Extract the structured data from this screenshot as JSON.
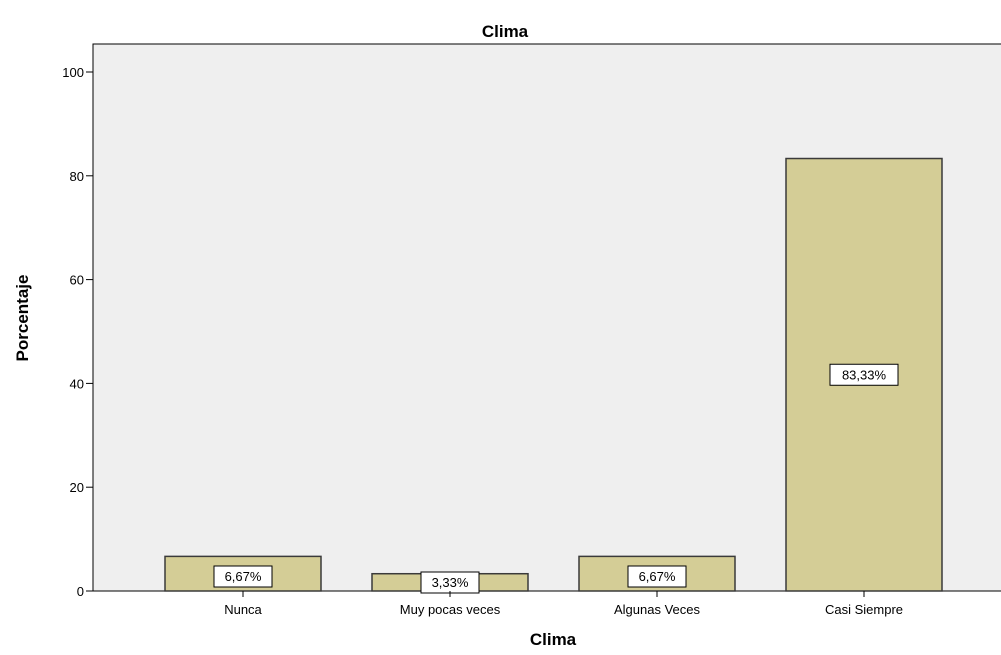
{
  "chart_data": {
    "type": "bar",
    "title": "Clima",
    "xlabel": "Clima",
    "ylabel": "Porcentaje",
    "categories": [
      "Nunca",
      "Muy pocas veces",
      "Algunas Veces",
      "Casi Siempre"
    ],
    "values": [
      6.67,
      3.33,
      6.67,
      83.33
    ],
    "data_labels": [
      "6,67%",
      "3,33%",
      "6,67%",
      "83,33%"
    ],
    "ylim": [
      0,
      100
    ],
    "yticks": [
      0,
      20,
      40,
      60,
      80,
      100
    ],
    "grid": false,
    "legend": "none",
    "colors": {
      "bar_fill": "#d4cd96",
      "bar_stroke": "#3a3a3a",
      "plot_background": "#efefef",
      "label_box_fill": "#ffffff"
    }
  }
}
